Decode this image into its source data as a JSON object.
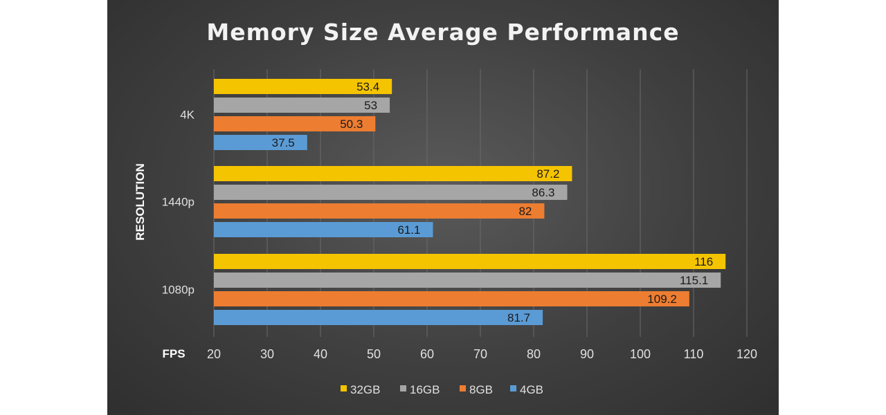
{
  "chart_data": {
    "type": "bar",
    "orientation": "horizontal",
    "title": "Memory Size Average Performance",
    "xlabel": "FPS",
    "ylabel": "RESOLUTION",
    "categories": [
      "4K",
      "1440p",
      "1080p"
    ],
    "series": [
      {
        "name": "32GB",
        "color": "#f5c400",
        "values": [
          53.4,
          87.2,
          116
        ]
      },
      {
        "name": "16GB",
        "color": "#a6a6a6",
        "values": [
          53,
          86.3,
          115.1
        ]
      },
      {
        "name": "8GB",
        "color": "#ed7d31",
        "values": [
          50.3,
          82,
          109.2
        ]
      },
      {
        "name": "4GB",
        "color": "#5b9bd5",
        "values": [
          37.5,
          61.1,
          81.7
        ]
      }
    ],
    "xlim": [
      20,
      120
    ],
    "xticks": [
      20,
      30,
      40,
      50,
      60,
      70,
      80,
      90,
      100,
      110,
      120
    ],
    "grid": true,
    "legend": "bottom"
  }
}
